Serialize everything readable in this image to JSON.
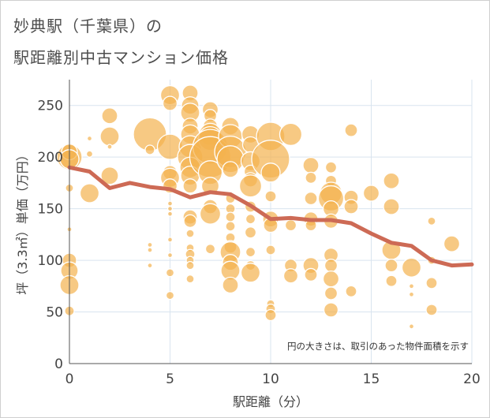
{
  "title_line1": "妙典駅（千葉県）の",
  "title_line2": "駅距離別中古マンション価格",
  "colors": {
    "bubble": "#f4b24f",
    "line": "#cd6a55",
    "grid": "#d9e4ef"
  },
  "chart_data": {
    "type": "scatter",
    "xlabel": "駅距離（分）",
    "ylabel": "坪（3.3㎡）単価（万円）",
    "xlim": [
      0,
      20
    ],
    "ylim": [
      0,
      275
    ],
    "x_ticks": [
      0,
      5,
      10,
      15,
      20
    ],
    "y_ticks": [
      0,
      50,
      100,
      150,
      200,
      250
    ],
    "annotation": "円の大きさは、取引のあった物件面積を示す",
    "trend_line": {
      "x": [
        0,
        1,
        2,
        3,
        4,
        5,
        6,
        7,
        8,
        9,
        10,
        11,
        12,
        13,
        14,
        15,
        16,
        17,
        18,
        19,
        20
      ],
      "y": [
        190,
        186,
        170,
        175,
        171,
        169,
        161,
        166,
        164,
        153,
        140,
        141,
        139,
        139,
        136,
        126,
        117,
        114,
        100,
        95,
        96
      ]
    },
    "points": [
      {
        "x": 0,
        "y": 200,
        "s": 16
      },
      {
        "x": 0,
        "y": 205,
        "s": 10
      },
      {
        "x": 0,
        "y": 198,
        "s": 12
      },
      {
        "x": 0,
        "y": 170,
        "s": 5
      },
      {
        "x": 0,
        "y": 130,
        "s": 3
      },
      {
        "x": 0,
        "y": 100,
        "s": 9
      },
      {
        "x": 0,
        "y": 90,
        "s": 11
      },
      {
        "x": 0,
        "y": 76,
        "s": 12
      },
      {
        "x": 0,
        "y": 51,
        "s": 6
      },
      {
        "x": 1,
        "y": 218,
        "s": 3
      },
      {
        "x": 1,
        "y": 203,
        "s": 4
      },
      {
        "x": 1,
        "y": 165,
        "s": 12
      },
      {
        "x": 2,
        "y": 240,
        "s": 10
      },
      {
        "x": 2,
        "y": 220,
        "s": 12
      },
      {
        "x": 2,
        "y": 210,
        "s": 3
      },
      {
        "x": 2,
        "y": 182,
        "s": 11
      },
      {
        "x": 4,
        "y": 222,
        "s": 21
      },
      {
        "x": 4,
        "y": 207,
        "s": 6
      },
      {
        "x": 4,
        "y": 115,
        "s": 3
      },
      {
        "x": 4,
        "y": 110,
        "s": 3
      },
      {
        "x": 4,
        "y": 95,
        "s": 3
      },
      {
        "x": 5,
        "y": 260,
        "s": 12
      },
      {
        "x": 5,
        "y": 252,
        "s": 9
      },
      {
        "x": 5,
        "y": 210,
        "s": 16
      },
      {
        "x": 5,
        "y": 185,
        "s": 9
      },
      {
        "x": 5,
        "y": 180,
        "s": 12
      },
      {
        "x": 5,
        "y": 172,
        "s": 9
      },
      {
        "x": 5,
        "y": 155,
        "s": 3
      },
      {
        "x": 5,
        "y": 150,
        "s": 3
      },
      {
        "x": 5,
        "y": 145,
        "s": 3
      },
      {
        "x": 5,
        "y": 120,
        "s": 3
      },
      {
        "x": 5,
        "y": 105,
        "s": 3
      },
      {
        "x": 5,
        "y": 88,
        "s": 5
      },
      {
        "x": 5,
        "y": 66,
        "s": 5
      },
      {
        "x": 6,
        "y": 262,
        "s": 10
      },
      {
        "x": 6,
        "y": 250,
        "s": 11
      },
      {
        "x": 6,
        "y": 243,
        "s": 12
      },
      {
        "x": 6,
        "y": 230,
        "s": 10
      },
      {
        "x": 6,
        "y": 222,
        "s": 12
      },
      {
        "x": 6,
        "y": 210,
        "s": 14
      },
      {
        "x": 6,
        "y": 200,
        "s": 16
      },
      {
        "x": 6,
        "y": 190,
        "s": 13
      },
      {
        "x": 6,
        "y": 182,
        "s": 12
      },
      {
        "x": 6,
        "y": 172,
        "s": 9
      },
      {
        "x": 6,
        "y": 142,
        "s": 9
      },
      {
        "x": 6,
        "y": 138,
        "s": 8
      },
      {
        "x": 6,
        "y": 126,
        "s": 5
      },
      {
        "x": 6,
        "y": 112,
        "s": 5
      },
      {
        "x": 6,
        "y": 106,
        "s": 6
      },
      {
        "x": 6,
        "y": 100,
        "s": 5
      },
      {
        "x": 6,
        "y": 95,
        "s": 5
      },
      {
        "x": 6,
        "y": 82,
        "s": 5
      },
      {
        "x": 7,
        "y": 246,
        "s": 10
      },
      {
        "x": 7,
        "y": 240,
        "s": 8
      },
      {
        "x": 7,
        "y": 230,
        "s": 9
      },
      {
        "x": 7,
        "y": 222,
        "s": 14
      },
      {
        "x": 7,
        "y": 218,
        "s": 15
      },
      {
        "x": 7,
        "y": 210,
        "s": 22
      },
      {
        "x": 7,
        "y": 200,
        "s": 26
      },
      {
        "x": 7,
        "y": 185,
        "s": 15
      },
      {
        "x": 7,
        "y": 172,
        "s": 11
      },
      {
        "x": 7,
        "y": 152,
        "s": 9
      },
      {
        "x": 7,
        "y": 145,
        "s": 13
      },
      {
        "x": 7,
        "y": 111,
        "s": 6
      },
      {
        "x": 8,
        "y": 230,
        "s": 11
      },
      {
        "x": 8,
        "y": 220,
        "s": 15
      },
      {
        "x": 8,
        "y": 205,
        "s": 20
      },
      {
        "x": 8,
        "y": 198,
        "s": 17
      },
      {
        "x": 8,
        "y": 188,
        "s": 10
      },
      {
        "x": 8,
        "y": 160,
        "s": 6
      },
      {
        "x": 8,
        "y": 150,
        "s": 6
      },
      {
        "x": 8,
        "y": 142,
        "s": 6
      },
      {
        "x": 8,
        "y": 133,
        "s": 6
      },
      {
        "x": 8,
        "y": 122,
        "s": 6
      },
      {
        "x": 8,
        "y": 113,
        "s": 8
      },
      {
        "x": 8,
        "y": 108,
        "s": 13
      },
      {
        "x": 8,
        "y": 98,
        "s": 10
      },
      {
        "x": 8,
        "y": 90,
        "s": 12
      },
      {
        "x": 8,
        "y": 76,
        "s": 10
      },
      {
        "x": 9,
        "y": 222,
        "s": 11
      },
      {
        "x": 9,
        "y": 212,
        "s": 10
      },
      {
        "x": 9,
        "y": 196,
        "s": 12
      },
      {
        "x": 9,
        "y": 186,
        "s": 8
      },
      {
        "x": 9,
        "y": 178,
        "s": 9
      },
      {
        "x": 9,
        "y": 172,
        "s": 14
      },
      {
        "x": 9,
        "y": 152,
        "s": 7
      },
      {
        "x": 9,
        "y": 140,
        "s": 6
      },
      {
        "x": 9,
        "y": 127,
        "s": 7
      },
      {
        "x": 9,
        "y": 108,
        "s": 6
      },
      {
        "x": 9,
        "y": 95,
        "s": 6
      },
      {
        "x": 9,
        "y": 88,
        "s": 12
      },
      {
        "x": 10,
        "y": 220,
        "s": 18
      },
      {
        "x": 10,
        "y": 198,
        "s": 24
      },
      {
        "x": 10,
        "y": 185,
        "s": 12
      },
      {
        "x": 10,
        "y": 162,
        "s": 7
      },
      {
        "x": 10,
        "y": 140,
        "s": 10
      },
      {
        "x": 10,
        "y": 134,
        "s": 9
      },
      {
        "x": 10,
        "y": 110,
        "s": 6
      },
      {
        "x": 10,
        "y": 58,
        "s": 5
      },
      {
        "x": 10,
        "y": 53,
        "s": 6
      },
      {
        "x": 10,
        "y": 47,
        "s": 7
      },
      {
        "x": 11,
        "y": 222,
        "s": 14
      },
      {
        "x": 11,
        "y": 134,
        "s": 7
      },
      {
        "x": 11,
        "y": 95,
        "s": 8
      },
      {
        "x": 11,
        "y": 85,
        "s": 9
      },
      {
        "x": 12,
        "y": 192,
        "s": 10
      },
      {
        "x": 12,
        "y": 180,
        "s": 7
      },
      {
        "x": 12,
        "y": 160,
        "s": 8
      },
      {
        "x": 12,
        "y": 140,
        "s": 9
      },
      {
        "x": 12,
        "y": 134,
        "s": 7
      },
      {
        "x": 12,
        "y": 95,
        "s": 10
      },
      {
        "x": 12,
        "y": 86,
        "s": 8
      },
      {
        "x": 13,
        "y": 190,
        "s": 7
      },
      {
        "x": 13,
        "y": 177,
        "s": 7
      },
      {
        "x": 13,
        "y": 165,
        "s": 14
      },
      {
        "x": 13,
        "y": 160,
        "s": 16
      },
      {
        "x": 13,
        "y": 150,
        "s": 10
      },
      {
        "x": 13,
        "y": 138,
        "s": 9
      },
      {
        "x": 13,
        "y": 105,
        "s": 9
      },
      {
        "x": 13,
        "y": 95,
        "s": 8
      },
      {
        "x": 13,
        "y": 82,
        "s": 10
      },
      {
        "x": 13,
        "y": 68,
        "s": 8
      },
      {
        "x": 13,
        "y": 52,
        "s": 9
      },
      {
        "x": 14,
        "y": 226,
        "s": 8
      },
      {
        "x": 14,
        "y": 161,
        "s": 9
      },
      {
        "x": 14,
        "y": 152,
        "s": 9
      },
      {
        "x": 14,
        "y": 70,
        "s": 7
      },
      {
        "x": 15,
        "y": 165,
        "s": 10
      },
      {
        "x": 16,
        "y": 177,
        "s": 10
      },
      {
        "x": 16,
        "y": 152,
        "s": 10
      },
      {
        "x": 16,
        "y": 110,
        "s": 12
      },
      {
        "x": 16,
        "y": 95,
        "s": 8
      },
      {
        "x": 16,
        "y": 80,
        "s": 7
      },
      {
        "x": 17,
        "y": 93,
        "s": 12
      },
      {
        "x": 17,
        "y": 75,
        "s": 3
      },
      {
        "x": 17,
        "y": 67,
        "s": 3
      },
      {
        "x": 17,
        "y": 36,
        "s": 3
      },
      {
        "x": 18,
        "y": 138,
        "s": 5
      },
      {
        "x": 18,
        "y": 100,
        "s": 5
      },
      {
        "x": 18,
        "y": 78,
        "s": 7
      },
      {
        "x": 18,
        "y": 52,
        "s": 7
      },
      {
        "x": 19,
        "y": 116,
        "s": 10
      }
    ]
  }
}
